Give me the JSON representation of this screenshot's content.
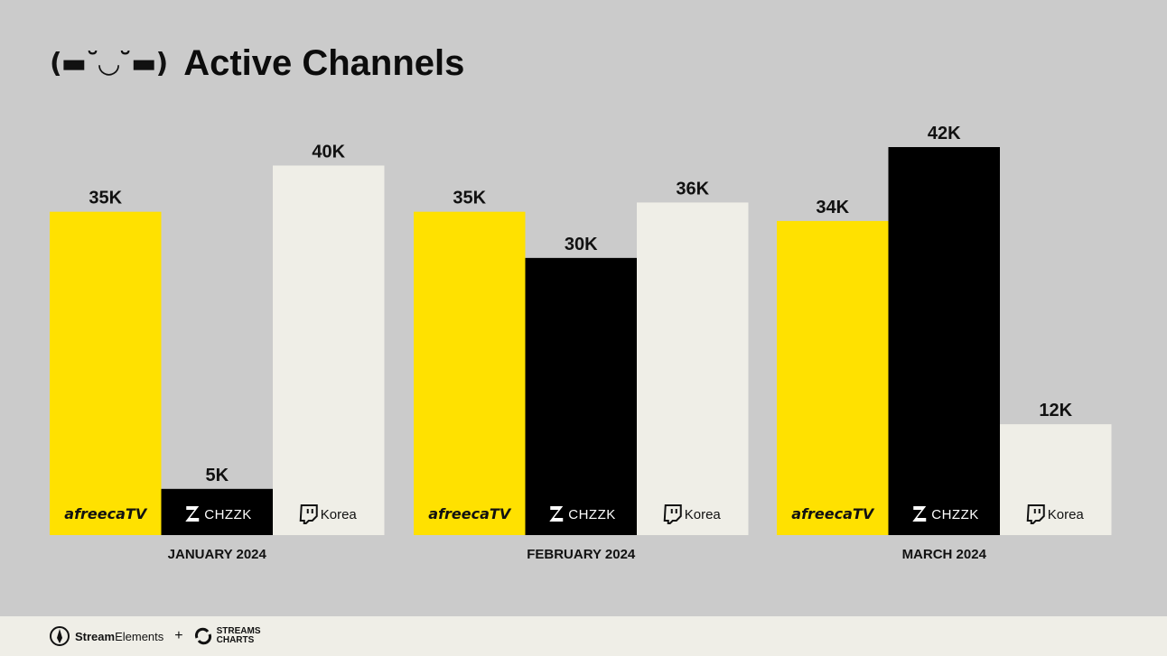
{
  "header": {
    "kaomoji": "(▬˘◡˘▬)",
    "title": "Active Channels"
  },
  "footer": {
    "brand_strong": "Stream",
    "brand_rest": "Elements",
    "plus": "+",
    "partner_line1": "STREAMS",
    "partner_line2": "CHARTS"
  },
  "colors": {
    "background": "#cbcbcb",
    "afreecatv": "#ffe100",
    "chzzk": "#000000",
    "korea": "#efeee7",
    "text": "#111111"
  },
  "chart_data": {
    "type": "bar",
    "title": "Active Channels",
    "categories": [
      "JANUARY 2024",
      "FEBRUARY 2024",
      "MARCH 2024"
    ],
    "series": [
      {
        "name": "afreecaTV",
        "values": [
          35,
          35,
          34
        ],
        "labels": [
          "35K",
          "35K",
          "34K"
        ],
        "color": "#ffe100"
      },
      {
        "name": "CHZZK",
        "values": [
          5,
          30,
          42
        ],
        "labels": [
          "5K",
          "30K",
          "42K"
        ],
        "color": "#000000"
      },
      {
        "name": "Korea",
        "values": [
          40,
          36,
          12
        ],
        "labels": [
          "40K",
          "36K",
          "12K"
        ],
        "color": "#efeee7"
      }
    ],
    "unit": "K",
    "ylim": [
      0,
      42
    ],
    "grid": false,
    "legend": "none"
  }
}
